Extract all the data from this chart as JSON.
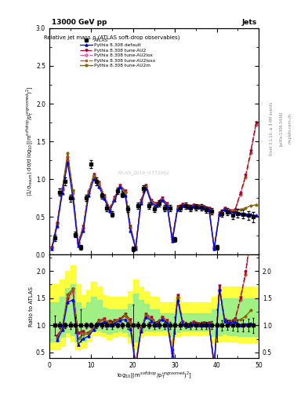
{
  "title_top": "13000 GeV pp",
  "title_right": "Jets",
  "plot_title": "Relative jet mass ρ (ATLAS soft-drop observables)",
  "ylabel_main": "(1/σ$_{resum}$) dσ/d log$_{10}$[(m$^{soft drop}$/p$_T^{ungroomed}$)$^2$]",
  "ylabel_ratio": "Ratio to ATLAS",
  "xlabel": "log$_{10}$[(m$^{soft drop}$/p$_T^{ungroomed}$)$^2$]",
  "rivet_label": "Rivet 3.1.10, ≥ 3.4M events",
  "arxiv_label": "[arXiv:1306.3436]",
  "mcplots_label": "mcplots.cern.ch",
  "watermark": "ATLAS_2019_I1772062",
  "xlim": [
    0,
    50
  ],
  "ylim_main": [
    0,
    3
  ],
  "ylim_ratio": [
    0.4,
    2.3
  ],
  "colors": {
    "atlas": "#000000",
    "default": "#0000ff",
    "au2": "#aa0033",
    "au2lox": "#dd55aa",
    "au2loxx": "#bb5500",
    "au2m": "#886600"
  },
  "legend_entries": [
    "ATLAS",
    "Pythia 8.308 default",
    "Pythia 8.308 tune-AU2",
    "Pythia 8.308 tune-AU2lox",
    "Pythia 8.308 tune-AU2loxx",
    "Pythia 8.308 tune-AU2m"
  ],
  "x_atlas": [
    1.25,
    2.5,
    3.75,
    5.0,
    6.25,
    7.5,
    8.75,
    10.0,
    11.25,
    12.5,
    13.75,
    15.0,
    16.25,
    17.5,
    18.75,
    20.0,
    21.25,
    22.5,
    23.75,
    25.0,
    26.25,
    27.5,
    28.75,
    30.0,
    31.25,
    32.5,
    33.75,
    35.0,
    36.25,
    37.5,
    38.75,
    40.0,
    41.25,
    42.5,
    43.75,
    45.0,
    46.25,
    47.5,
    48.75
  ],
  "y_atlas": [
    0.22,
    0.83,
    0.97,
    0.75,
    0.27,
    0.1,
    0.75,
    1.2,
    0.97,
    0.78,
    0.62,
    0.54,
    0.85,
    0.8,
    0.61,
    0.08,
    0.65,
    0.88,
    0.65,
    0.61,
    0.68,
    0.62,
    0.62,
    0.2,
    0.62,
    0.65,
    0.62,
    0.63,
    0.63,
    0.6,
    0.58,
    0.1,
    0.55,
    0.57,
    0.52,
    0.55,
    0.54,
    0.52,
    0.5
  ],
  "ye_atlas": [
    0.04,
    0.05,
    0.05,
    0.05,
    0.04,
    0.03,
    0.04,
    0.05,
    0.05,
    0.04,
    0.04,
    0.04,
    0.04,
    0.04,
    0.04,
    0.03,
    0.04,
    0.04,
    0.04,
    0.04,
    0.04,
    0.04,
    0.04,
    0.03,
    0.04,
    0.04,
    0.04,
    0.04,
    0.04,
    0.04,
    0.04,
    0.03,
    0.05,
    0.05,
    0.05,
    0.06,
    0.06,
    0.06,
    0.07
  ],
  "x_mc": [
    0.625,
    1.875,
    3.125,
    4.375,
    5.625,
    6.875,
    8.125,
    9.375,
    10.625,
    11.875,
    13.125,
    14.375,
    15.625,
    16.875,
    18.125,
    19.375,
    20.625,
    21.875,
    23.125,
    24.375,
    25.625,
    26.875,
    28.125,
    29.375,
    30.625,
    31.875,
    33.125,
    34.375,
    35.625,
    36.875,
    38.125,
    39.375,
    40.625,
    41.875,
    43.125,
    44.375,
    45.625,
    46.875,
    48.125,
    49.375
  ],
  "y_default": [
    0.08,
    0.38,
    0.82,
    1.22,
    0.75,
    0.12,
    0.32,
    0.78,
    1.0,
    0.9,
    0.74,
    0.58,
    0.72,
    0.9,
    0.78,
    0.32,
    0.08,
    0.68,
    0.88,
    0.68,
    0.65,
    0.72,
    0.65,
    0.18,
    0.6,
    0.65,
    0.63,
    0.64,
    0.63,
    0.62,
    0.6,
    0.08,
    0.54,
    0.6,
    0.57,
    0.57,
    0.55,
    0.54,
    0.53,
    0.52
  ],
  "y_au2": [
    0.1,
    0.42,
    0.88,
    1.28,
    0.85,
    0.16,
    0.38,
    0.84,
    1.06,
    0.96,
    0.78,
    0.62,
    0.76,
    0.92,
    0.85,
    0.38,
    0.1,
    0.72,
    0.92,
    0.72,
    0.68,
    0.75,
    0.68,
    0.22,
    0.64,
    0.67,
    0.65,
    0.66,
    0.65,
    0.64,
    0.62,
    0.1,
    0.56,
    0.62,
    0.59,
    0.6,
    0.82,
    1.05,
    1.38,
    1.75
  ],
  "y_au2lox": [
    0.1,
    0.42,
    0.86,
    1.25,
    0.82,
    0.16,
    0.36,
    0.82,
    1.04,
    0.94,
    0.76,
    0.6,
    0.74,
    0.9,
    0.83,
    0.36,
    0.09,
    0.7,
    0.9,
    0.7,
    0.66,
    0.73,
    0.66,
    0.2,
    0.62,
    0.65,
    0.63,
    0.64,
    0.63,
    0.62,
    0.6,
    0.09,
    0.54,
    0.6,
    0.57,
    0.58,
    0.8,
    1.02,
    1.35,
    1.72
  ],
  "y_au2loxx": [
    0.1,
    0.42,
    0.87,
    1.3,
    0.84,
    0.16,
    0.37,
    0.83,
    1.05,
    0.95,
    0.77,
    0.61,
    0.75,
    0.91,
    0.84,
    0.37,
    0.1,
    0.71,
    0.91,
    0.71,
    0.67,
    0.74,
    0.67,
    0.21,
    0.63,
    0.66,
    0.64,
    0.65,
    0.64,
    0.63,
    0.61,
    0.1,
    0.55,
    0.61,
    0.58,
    0.59,
    0.81,
    1.03,
    1.36,
    1.73
  ],
  "y_au2m": [
    0.09,
    0.4,
    0.87,
    1.35,
    0.85,
    0.14,
    0.35,
    0.82,
    1.04,
    0.94,
    0.76,
    0.6,
    0.74,
    0.9,
    0.83,
    0.36,
    0.09,
    0.7,
    0.9,
    0.7,
    0.66,
    0.73,
    0.66,
    0.2,
    0.62,
    0.65,
    0.63,
    0.64,
    0.63,
    0.62,
    0.6,
    0.09,
    0.54,
    0.6,
    0.57,
    0.58,
    0.6,
    0.62,
    0.65,
    0.66
  ],
  "band_x": [
    0.0,
    1.25,
    2.5,
    3.75,
    5.0,
    6.25,
    7.5,
    8.75,
    10.0,
    11.25,
    12.5,
    13.75,
    15.0,
    16.25,
    17.5,
    18.75,
    20.0,
    21.25,
    22.5,
    23.75,
    25.0,
    26.25,
    27.5,
    28.75,
    30.0,
    31.25,
    32.5,
    33.75,
    35.0,
    36.25,
    37.5,
    38.75,
    40.0,
    41.25,
    42.5,
    43.75,
    45.0,
    46.25,
    47.5,
    48.75,
    50.0
  ],
  "band_y_lo": [
    0.55,
    0.55,
    0.62,
    0.8,
    0.7,
    0.55,
    0.58,
    0.72,
    0.82,
    0.82,
    0.8,
    0.75,
    0.78,
    0.82,
    0.8,
    0.68,
    0.55,
    0.78,
    0.83,
    0.82,
    0.82,
    0.83,
    0.82,
    0.68,
    0.8,
    0.83,
    0.82,
    0.83,
    0.82,
    0.83,
    0.82,
    0.68,
    0.7,
    0.72,
    0.7,
    0.7,
    0.68,
    0.68,
    0.68,
    0.68,
    0.68
  ],
  "band_y_hi": [
    1.75,
    1.75,
    1.85,
    2.0,
    2.1,
    1.75,
    1.55,
    1.65,
    1.8,
    1.72,
    1.55,
    1.52,
    1.52,
    1.52,
    1.52,
    1.62,
    1.85,
    1.72,
    1.62,
    1.52,
    1.52,
    1.42,
    1.42,
    1.42,
    1.52,
    1.42,
    1.42,
    1.42,
    1.42,
    1.42,
    1.42,
    1.52,
    1.62,
    1.72,
    1.72,
    1.72,
    1.72,
    1.72,
    1.72,
    1.72,
    1.72
  ],
  "band_g_lo": [
    0.7,
    0.7,
    0.78,
    0.88,
    0.82,
    0.7,
    0.72,
    0.84,
    0.9,
    0.9,
    0.88,
    0.85,
    0.88,
    0.9,
    0.88,
    0.8,
    0.7,
    0.88,
    0.9,
    0.9,
    0.9,
    0.9,
    0.9,
    0.8,
    0.88,
    0.9,
    0.9,
    0.9,
    0.9,
    0.9,
    0.9,
    0.8,
    0.82,
    0.84,
    0.82,
    0.82,
    0.8,
    0.8,
    0.8,
    0.8,
    0.8
  ],
  "band_g_hi": [
    1.42,
    1.42,
    1.52,
    1.68,
    1.75,
    1.42,
    1.32,
    1.42,
    1.52,
    1.46,
    1.32,
    1.3,
    1.3,
    1.3,
    1.3,
    1.4,
    1.58,
    1.46,
    1.4,
    1.3,
    1.3,
    1.22,
    1.22,
    1.22,
    1.3,
    1.22,
    1.22,
    1.22,
    1.22,
    1.22,
    1.22,
    1.3,
    1.4,
    1.5,
    1.5,
    1.5,
    1.5,
    1.5,
    1.5,
    1.5,
    1.5
  ]
}
